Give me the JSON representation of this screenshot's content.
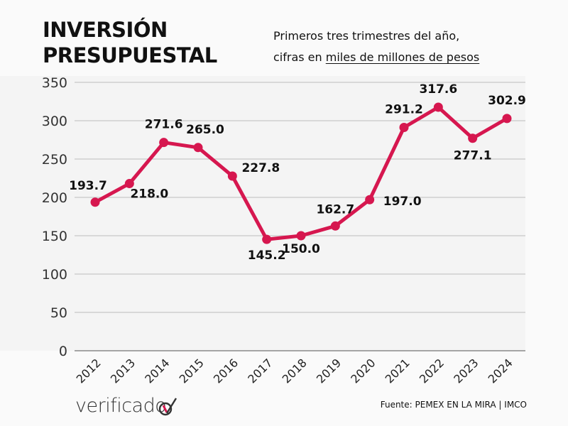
{
  "header": {
    "title_line1": "INVERSIÓN",
    "title_line2": "PRESUPUESTAL",
    "subtitle_line1": "Primeros tres trimestres del año,",
    "subtitle_line2_prefix": "cifras en ",
    "subtitle_line2_underlined": "miles de millones de pesos"
  },
  "footer": {
    "logo_text": "verificado",
    "source": "Fuente: PEMEX EN LA MIRA | IMCO"
  },
  "colors": {
    "line": "#d6174f",
    "panel_bg": "#f4f4f4",
    "page_bg": "#fafafa",
    "grid": "#c8c8c8",
    "text": "#111111"
  },
  "chart_data": {
    "type": "line",
    "title": "INVERSIÓN PRESUPUESTAL",
    "subtitle": "Primeros tres trimestres del año, cifras en miles de millones de pesos",
    "xlabel": "",
    "ylabel": "",
    "categories": [
      "2012",
      "2013",
      "2014",
      "2015",
      "2016",
      "2017",
      "2018",
      "2019",
      "2020",
      "2021",
      "2022",
      "2023",
      "2024"
    ],
    "series": [
      {
        "name": "Inversión presupuestal",
        "values": [
          193.7,
          218.0,
          271.6,
          265.0,
          227.8,
          145.2,
          150.0,
          162.7,
          197.0,
          291.2,
          317.6,
          277.1,
          302.9
        ],
        "labels": [
          "193.7",
          "218.0",
          "271.6",
          "265.0",
          "227.8",
          "145.2",
          "150.0",
          "162.7",
          "197.0",
          "291.2",
          "317.6",
          "277.1",
          "302.9"
        ]
      }
    ],
    "yticks": [
      "0",
      "50",
      "100",
      "150",
      "200",
      "250",
      "300",
      "350"
    ],
    "ylim": [
      0,
      350
    ],
    "grid": true,
    "legend": "none",
    "source": "PEMEX EN LA MIRA | IMCO"
  }
}
